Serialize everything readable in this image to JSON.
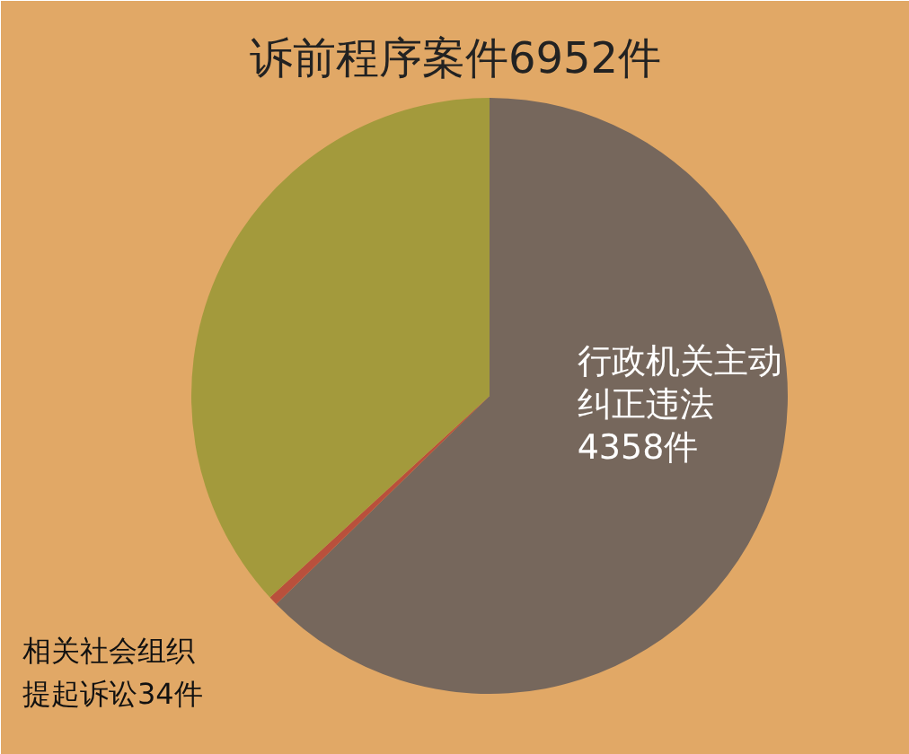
{
  "chart_data": {
    "type": "pie",
    "title": "诉前程序案件6952件",
    "categories": [
      "行政机关主动纠正违法",
      "相关社会组织提起诉讼",
      null
    ],
    "values": [
      4358,
      34,
      2560
    ],
    "colors": [
      "#76675c",
      "#b9503c",
      "#a39a3c"
    ],
    "value_labels": [
      "4358件",
      "34件",
      null
    ]
  }
}
